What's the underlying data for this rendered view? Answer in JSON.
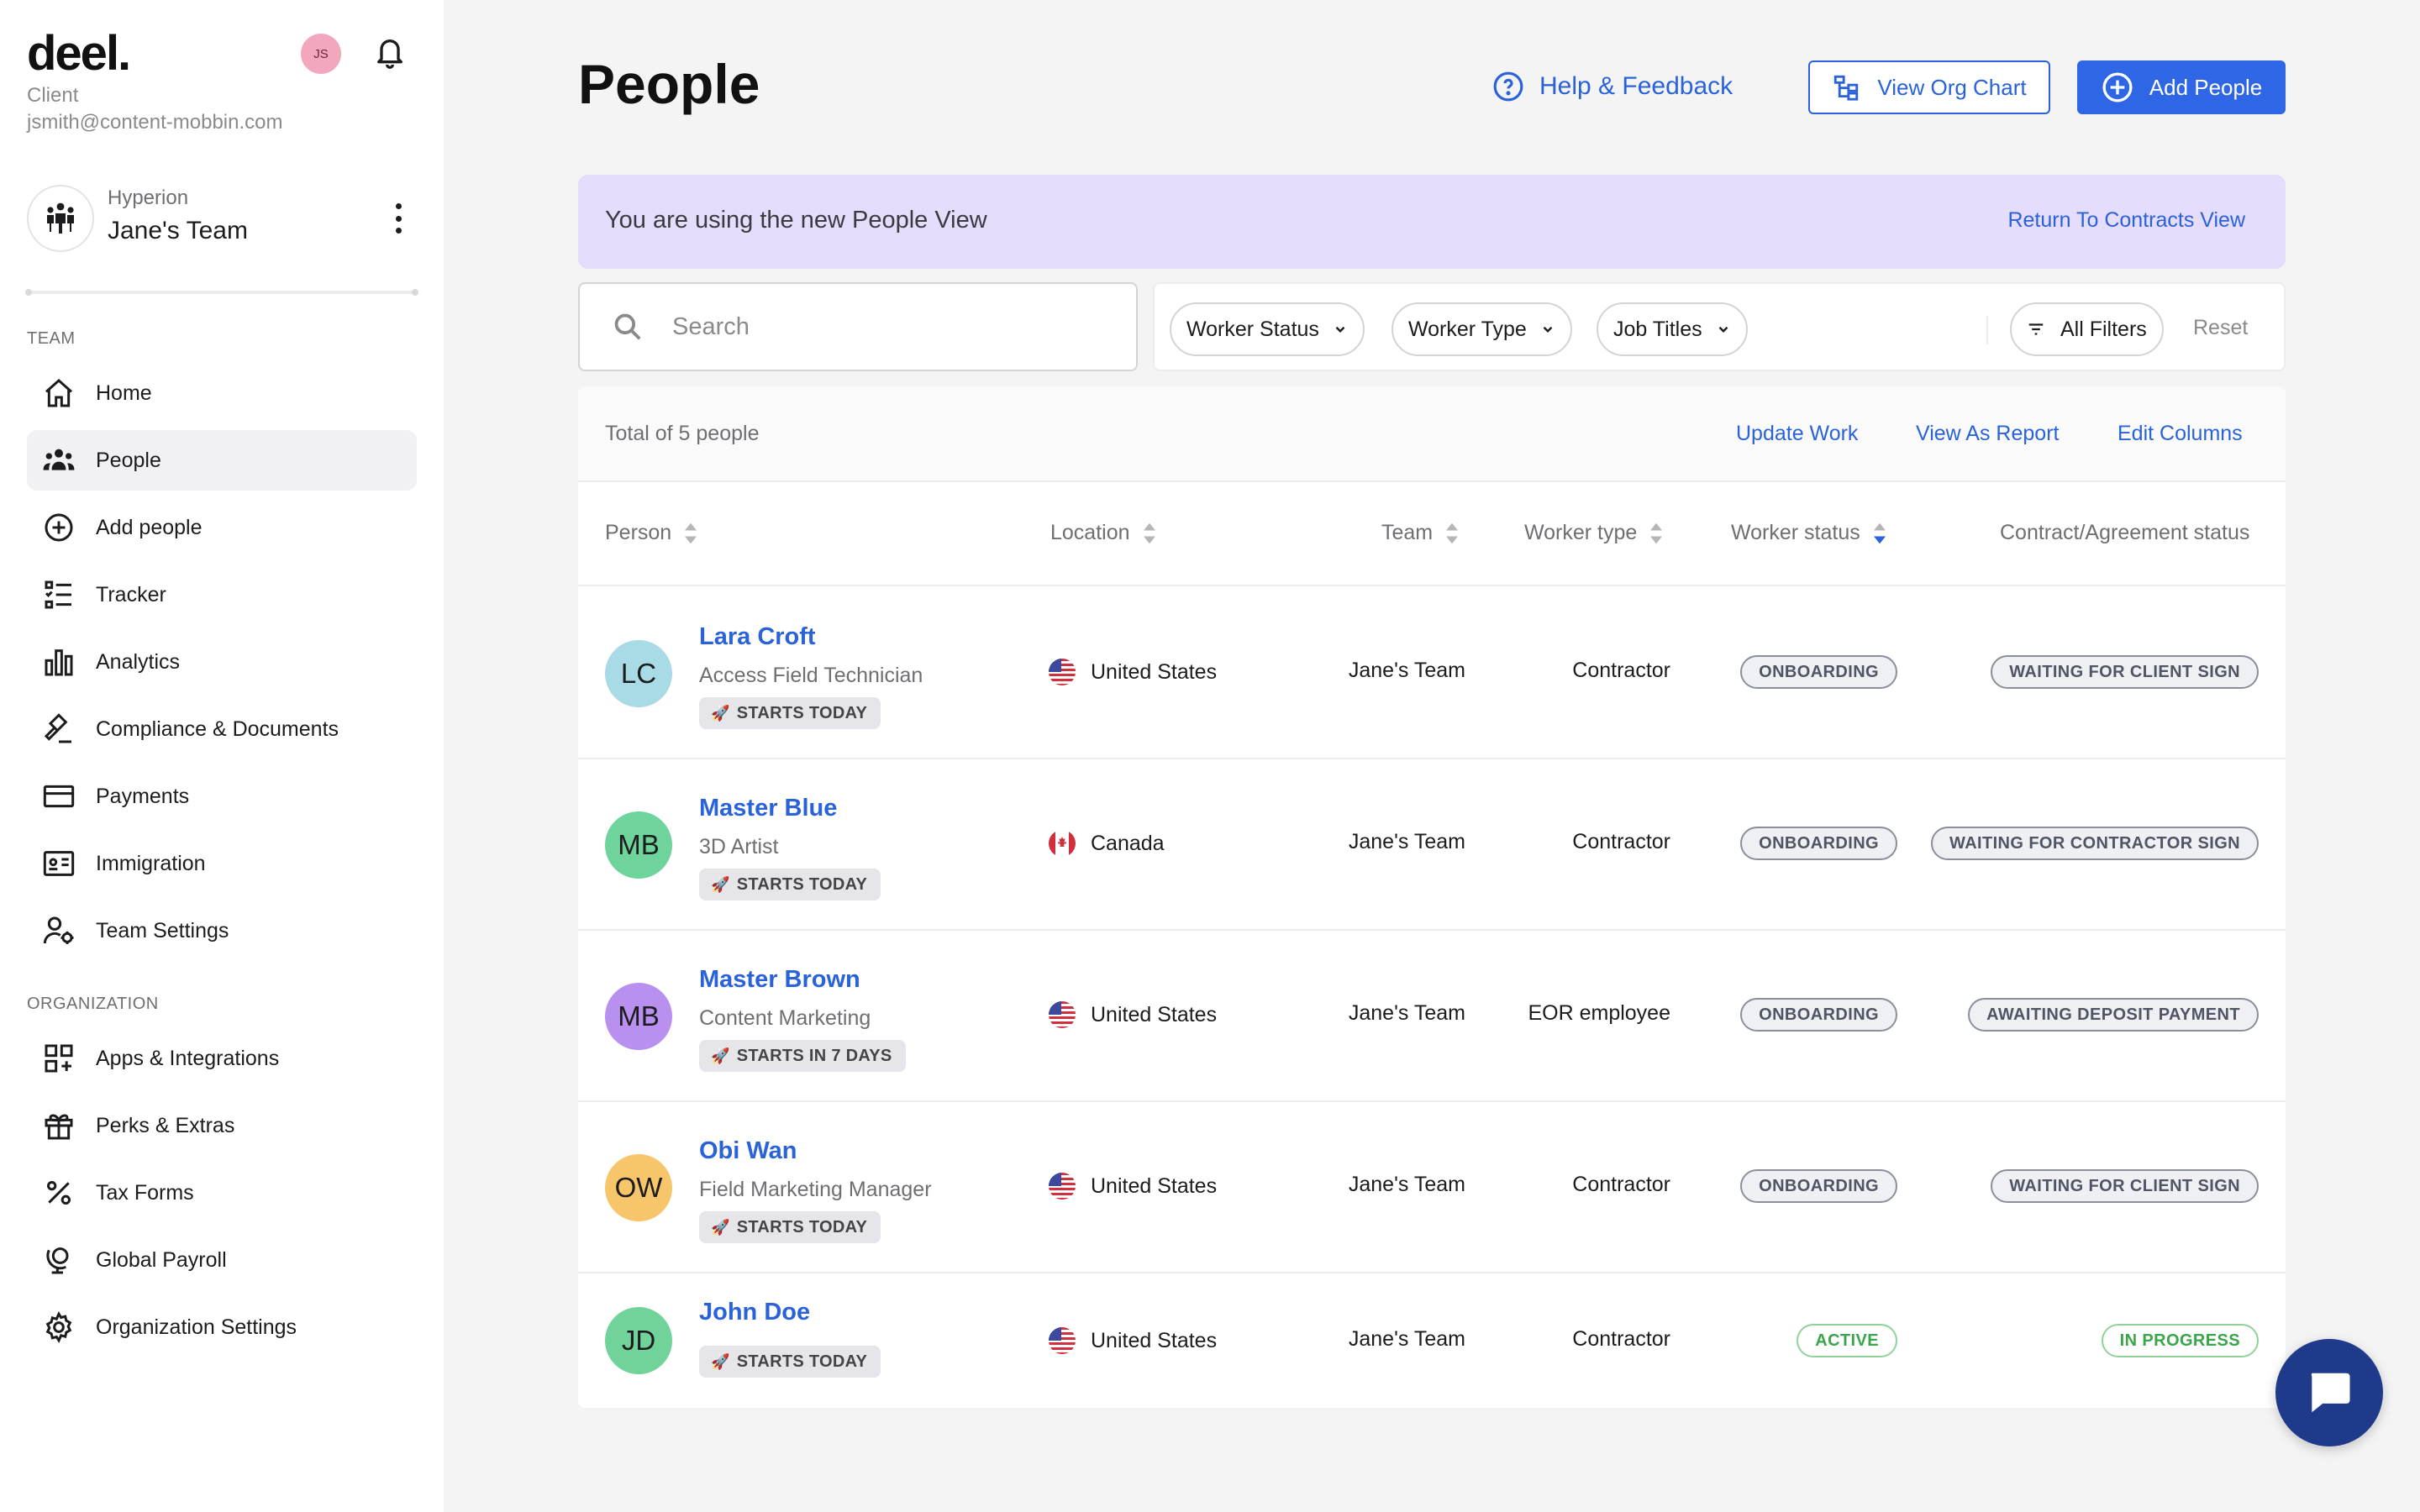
{
  "app": {
    "logo": "deel.",
    "role": "Client",
    "email": "jsmith@content-mobbin.com",
    "avatar_initials": "JS"
  },
  "org": {
    "name": "Hyperion",
    "team": "Jane's Team"
  },
  "sidebar": {
    "team_label": "TEAM",
    "team_items": [
      {
        "label": "Home",
        "icon": "home-icon"
      },
      {
        "label": "People",
        "icon": "people-icon",
        "active": true
      },
      {
        "label": "Add people",
        "icon": "plus-circle-icon"
      },
      {
        "label": "Tracker",
        "icon": "tracker-icon"
      },
      {
        "label": "Analytics",
        "icon": "bar-chart-icon"
      },
      {
        "label": "Compliance & Documents",
        "icon": "gavel-icon"
      },
      {
        "label": "Payments",
        "icon": "credit-card-icon"
      },
      {
        "label": "Immigration",
        "icon": "id-card-icon"
      },
      {
        "label": "Team Settings",
        "icon": "user-settings-icon"
      }
    ],
    "org_label": "ORGANIZATION",
    "org_items": [
      {
        "label": "Apps & Integrations",
        "icon": "apps-grid-icon"
      },
      {
        "label": "Perks & Extras",
        "icon": "gift-icon"
      },
      {
        "label": "Tax Forms",
        "icon": "percent-icon"
      },
      {
        "label": "Global Payroll",
        "icon": "globe-stand-icon"
      },
      {
        "label": "Organization Settings",
        "icon": "gear-icon"
      }
    ]
  },
  "header": {
    "title": "People",
    "help_label": "Help & Feedback",
    "org_chart_label": "View Org Chart",
    "add_people_label": "Add People"
  },
  "banner": {
    "text": "You are using the new People View",
    "link": "Return To Contracts View"
  },
  "search": {
    "placeholder": "Search",
    "value": ""
  },
  "filters": {
    "worker_status": "Worker Status",
    "worker_type": "Worker Type",
    "job_titles": "Job Titles",
    "all_filters": "All Filters",
    "reset": "Reset"
  },
  "summary": {
    "total": "Total of 5 people",
    "update_work": "Update Work",
    "view_as_report": "View As Report",
    "edit_columns": "Edit Columns"
  },
  "table": {
    "columns": {
      "person": "Person",
      "location": "Location",
      "team": "Team",
      "worker_type": "Worker type",
      "worker_status": "Worker status",
      "contract_status": "Contract/Agreement status"
    },
    "rows": [
      {
        "initials": "LC",
        "avatar_color": "#a8dbe6",
        "name": "Lara Croft",
        "title": "Access Field Technician",
        "badge": "STARTS TODAY",
        "flag": "us",
        "location": "United States",
        "team": "Jane's Team",
        "worker_type": "Contractor",
        "worker_status": "ONBOARDING",
        "contract_status": "WAITING FOR CLIENT SIGN"
      },
      {
        "initials": "MB",
        "avatar_color": "#6fd39c",
        "name": "Master Blue",
        "title": "3D Artist",
        "badge": "STARTS TODAY",
        "flag": "ca",
        "location": "Canada",
        "team": "Jane's Team",
        "worker_type": "Contractor",
        "worker_status": "ONBOARDING",
        "contract_status": "WAITING FOR CONTRACTOR SIGN"
      },
      {
        "initials": "MB",
        "avatar_color": "#b98ff0",
        "name": "Master Brown",
        "title": "Content Marketing",
        "badge": "STARTS IN 7 DAYS",
        "flag": "us",
        "location": "United States",
        "team": "Jane's Team",
        "worker_type": "EOR employee",
        "worker_status": "ONBOARDING",
        "contract_status": "AWAITING DEPOSIT PAYMENT"
      },
      {
        "initials": "OW",
        "avatar_color": "#f7c66a",
        "name": "Obi Wan",
        "title": "Field Marketing Manager",
        "badge": "STARTS TODAY",
        "flag": "us",
        "location": "United States",
        "team": "Jane's Team",
        "worker_type": "Contractor",
        "worker_status": "ONBOARDING",
        "contract_status": "WAITING FOR CLIENT SIGN"
      },
      {
        "initials": "JD",
        "avatar_color": "#72d39a",
        "name": "John Doe",
        "title": "",
        "badge": "STARTS TODAY",
        "flag": "us",
        "location": "United States",
        "team": "Jane's Team",
        "worker_type": "Contractor",
        "worker_status": "ACTIVE",
        "contract_status": "IN PROGRESS"
      }
    ]
  },
  "colors": {
    "accent": "#2962d9",
    "primary_button": "#2e66e6",
    "banner": "#e6dcfb",
    "status_neutral": "#4f5562",
    "status_success": "#3aa54a",
    "chat": "#1f3a8a"
  }
}
